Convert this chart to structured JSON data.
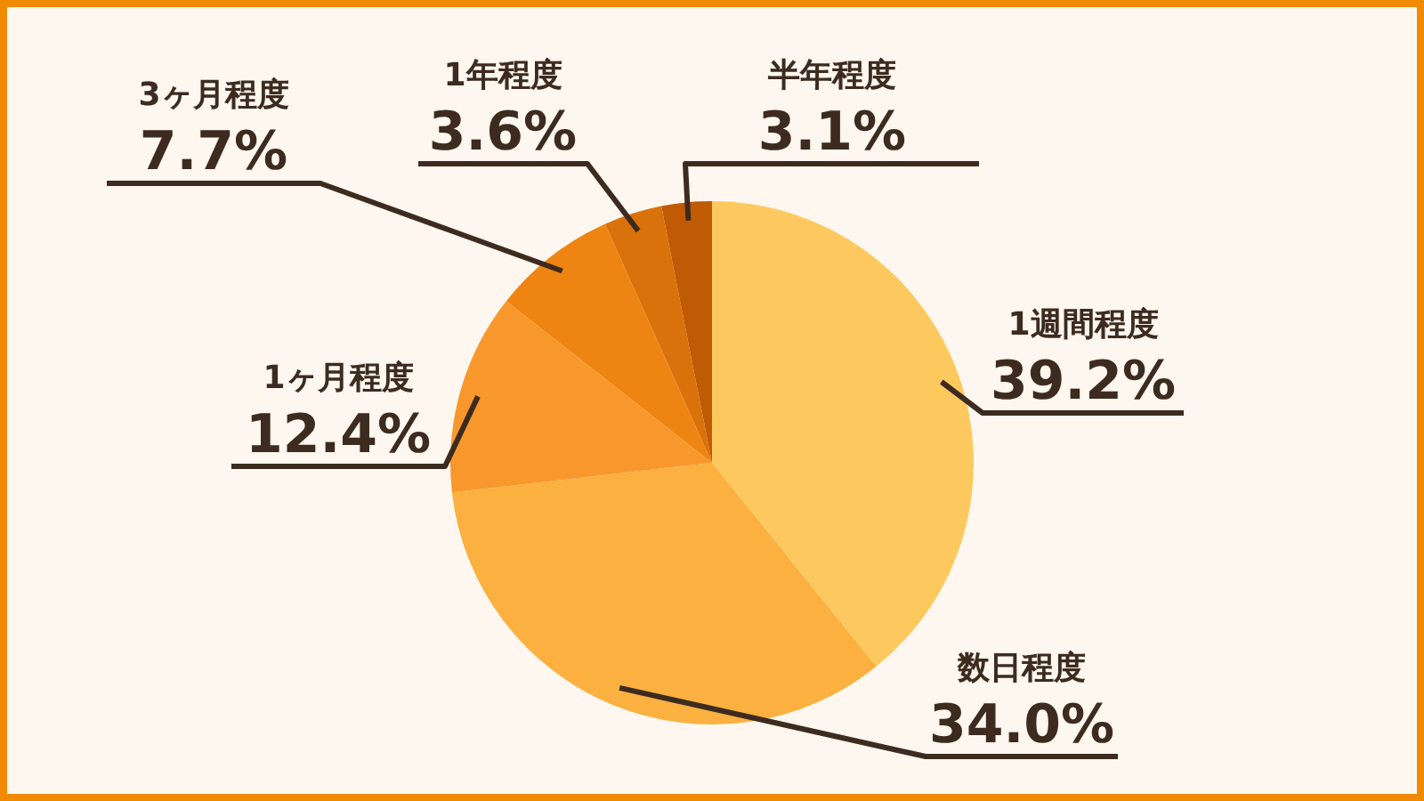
{
  "chart_data": {
    "type": "pie",
    "categories": [
      "1週間程度",
      "数日程度",
      "1ヶ月程度",
      "3ヶ月程度",
      "1年程度",
      "半年程度"
    ],
    "values": [
      39.2,
      34.0,
      12.4,
      7.7,
      3.6,
      3.1
    ],
    "colors": [
      "#fdc95f",
      "#fbb040",
      "#f8982c",
      "#ee8512",
      "#da720b",
      "#c05a05"
    ],
    "value_labels": [
      "39.2%",
      "34.0%",
      "12.4%",
      "7.7%",
      "3.6%",
      "3.1%"
    ]
  }
}
